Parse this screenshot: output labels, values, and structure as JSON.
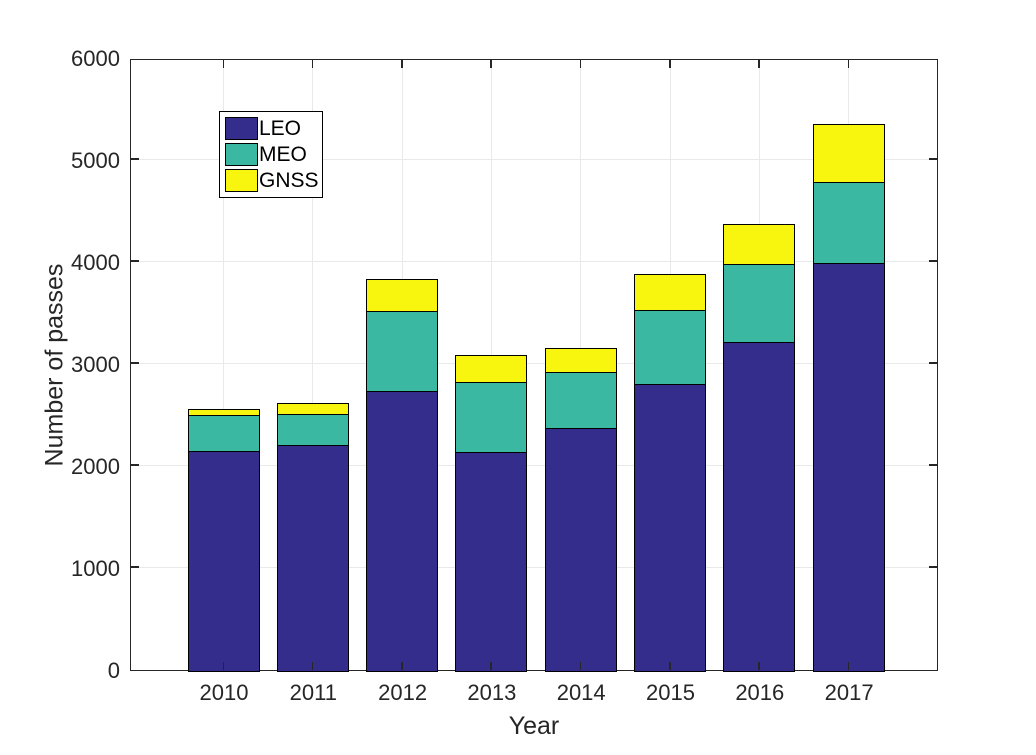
{
  "chart_data": {
    "type": "bar",
    "stacked": true,
    "title": "",
    "xlabel": "Year",
    "ylabel": "Number of passes",
    "categories": [
      "2010",
      "2011",
      "2012",
      "2013",
      "2014",
      "2015",
      "2016",
      "2017"
    ],
    "series": [
      {
        "name": "LEO",
        "color": "#352d8b",
        "values": [
          2160,
          2220,
          2750,
          2150,
          2390,
          2820,
          3230,
          4000
        ]
      },
      {
        "name": "MEO",
        "color": "#3bb8a1",
        "values": [
          350,
          300,
          780,
          690,
          550,
          720,
          770,
          800
        ]
      },
      {
        "name": "GNSS",
        "color": "#f8f50f",
        "values": [
          60,
          110,
          320,
          260,
          230,
          360,
          390,
          570
        ]
      }
    ],
    "totals": [
      2570,
      2630,
      3850,
      3100,
      3170,
      3900,
      4390,
      5370
    ],
    "ylim": [
      0,
      6000
    ],
    "yticks": [
      0,
      1000,
      2000,
      3000,
      4000,
      5000,
      6000
    ],
    "grid": true,
    "legend_position": "upper-left-inside",
    "bar_edge_color": "#000000",
    "axis_color": "#262626",
    "grid_color": "#e9e9e9",
    "background_color": "#ffffff"
  }
}
